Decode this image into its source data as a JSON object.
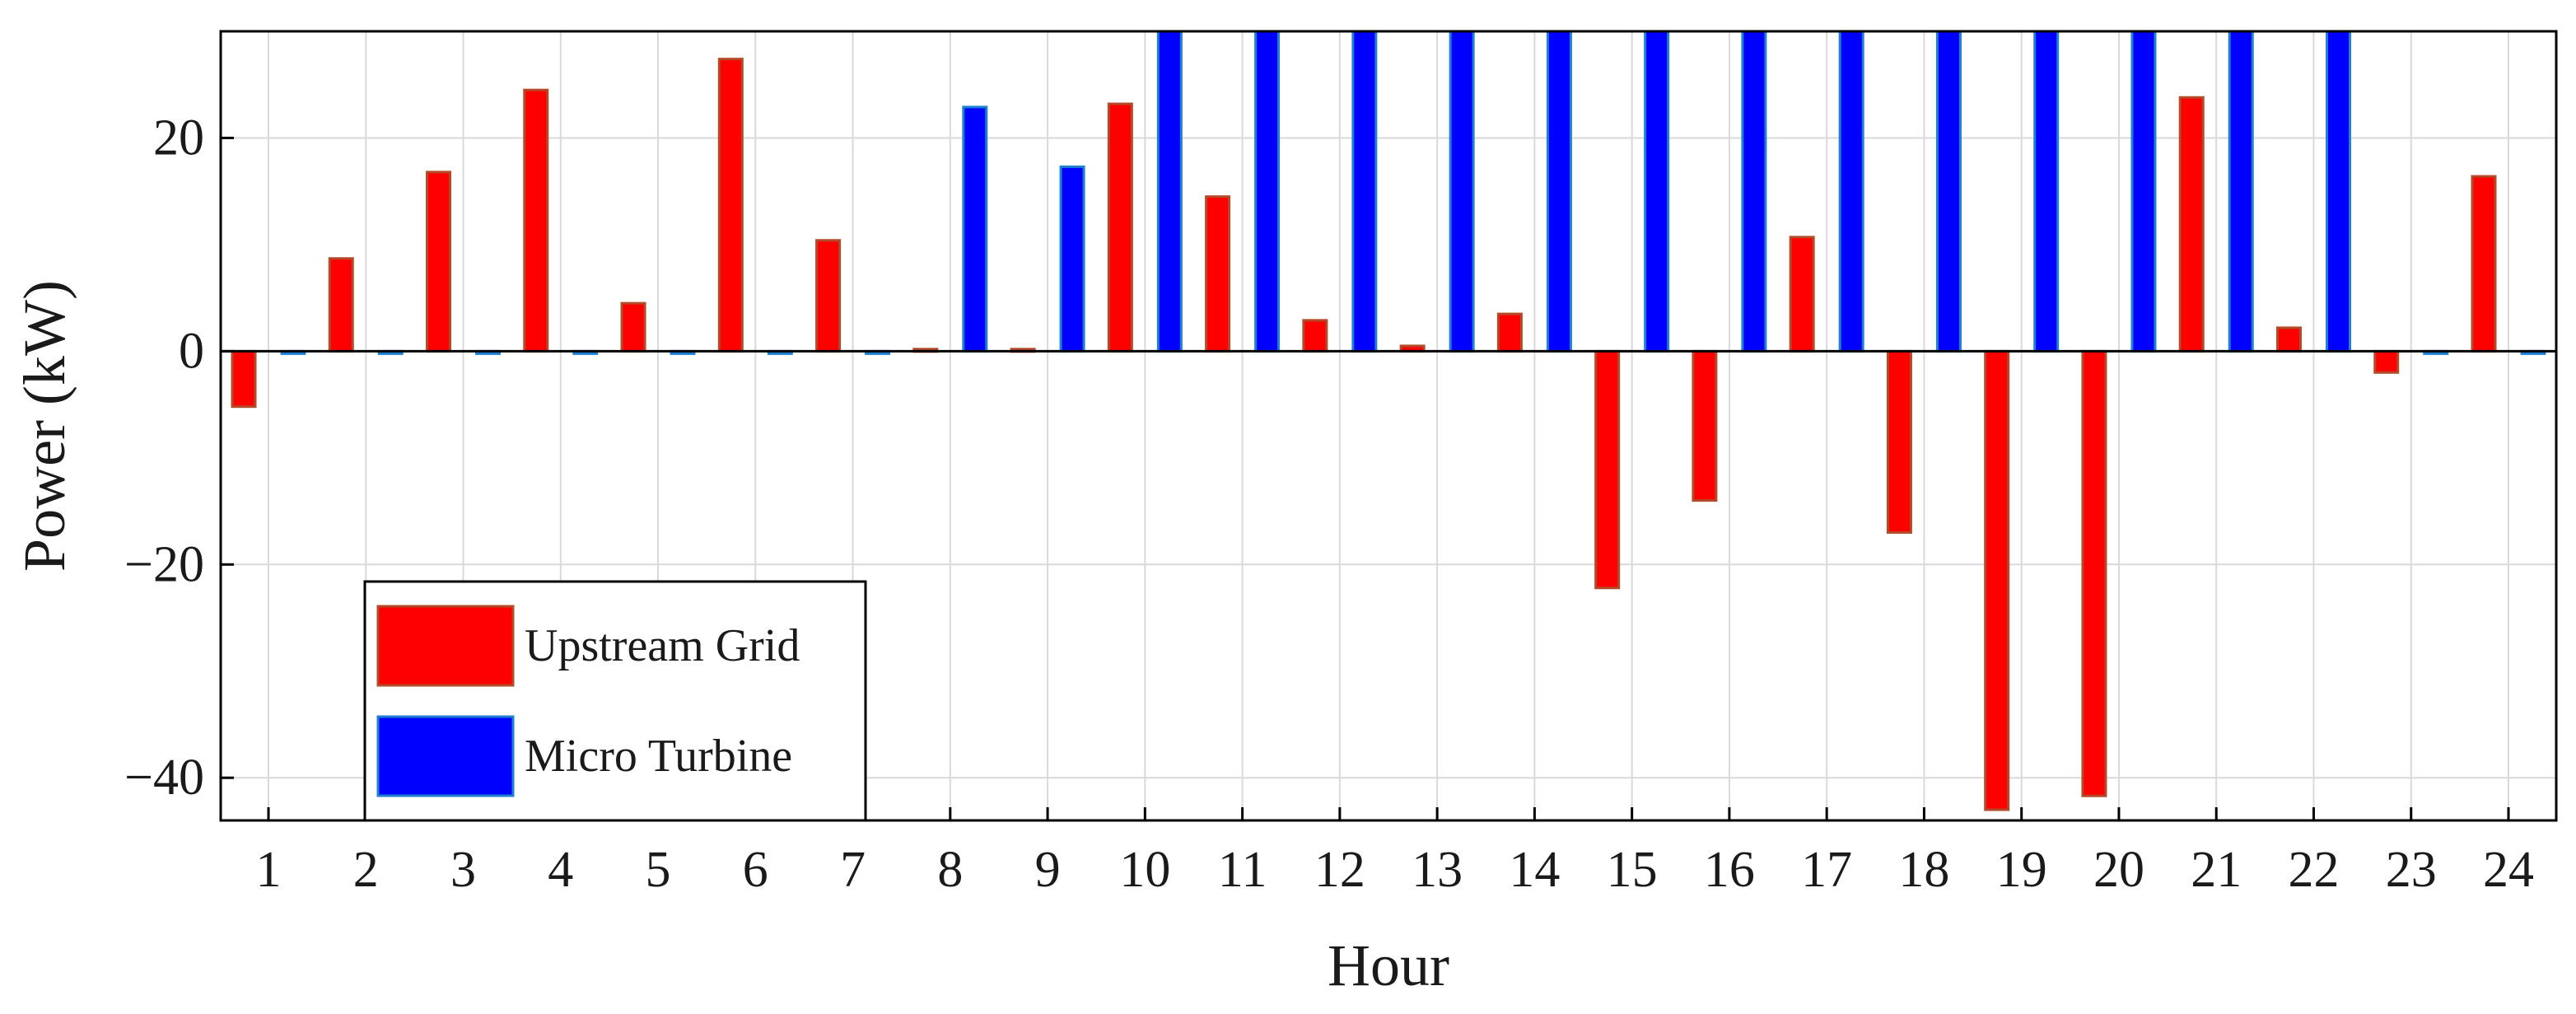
{
  "chart_data": {
    "type": "bar",
    "title": "",
    "xlabel": "Hour",
    "ylabel": "Power (kW)",
    "categories": [
      "1",
      "2",
      "3",
      "4",
      "5",
      "6",
      "7",
      "8",
      "9",
      "10",
      "11",
      "12",
      "13",
      "14",
      "15",
      "16",
      "17",
      "18",
      "19",
      "20",
      "21",
      "22",
      "23",
      "24"
    ],
    "ylim": [
      -44,
      30
    ],
    "yticks": [
      -40,
      -20,
      0,
      20
    ],
    "ytick_labels": [
      "−40",
      "−20",
      "0",
      "20"
    ],
    "grid": true,
    "legend_position": "bottom-left",
    "series": [
      {
        "name": "Upstream Grid",
        "color": "#ff0000",
        "values": [
          -5.2,
          8.7,
          16.8,
          24.5,
          4.5,
          27.4,
          10.4,
          0.2,
          0.2,
          23.2,
          14.5,
          2.9,
          0.5,
          3.5,
          -22.2,
          -14.0,
          10.7,
          -17.0,
          -43.0,
          -41.7,
          23.8,
          2.2,
          -2.0,
          16.4
        ]
      },
      {
        "name": "Micro Turbine",
        "color": "#0000ff",
        "values": [
          0,
          0,
          0,
          0,
          0,
          0,
          0,
          22.9,
          17.3,
          30,
          30,
          30,
          30,
          30,
          30,
          30,
          30,
          30,
          30,
          30,
          30,
          30,
          0,
          0
        ]
      }
    ]
  }
}
